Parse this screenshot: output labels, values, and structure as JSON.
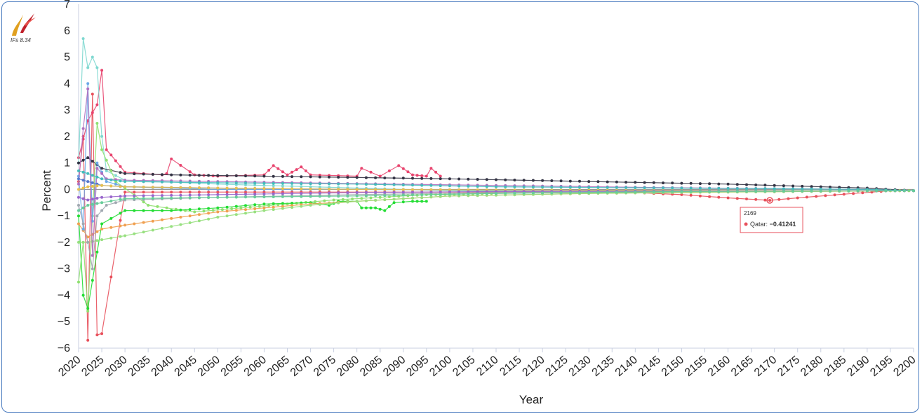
{
  "app": {
    "version_label": "IFs 8.34"
  },
  "chart_data": {
    "type": "line",
    "xlabel": "Year",
    "ylabel": "Percent",
    "xlim": [
      2020,
      2200
    ],
    "ylim": [
      -6,
      7
    ],
    "x_ticks": [
      "2020",
      "2025",
      "2030",
      "2035",
      "2040",
      "2045",
      "2050",
      "2055",
      "2060",
      "2065",
      "2070",
      "2075",
      "2080",
      "2085",
      "2090",
      "2095",
      "2100",
      "2105",
      "2110",
      "2115",
      "2120",
      "2125",
      "2130",
      "2135",
      "2140",
      "2145",
      "2150",
      "2155",
      "2160",
      "2165",
      "2170",
      "2175",
      "2180",
      "2185",
      "2190",
      "2195",
      "2200"
    ],
    "y_ticks": [
      "-6",
      "-5",
      "-4",
      "-3",
      "-2",
      "-1",
      "0",
      "1",
      "2",
      "3",
      "4",
      "5",
      "6",
      "7"
    ],
    "series": [
      {
        "name": "Qatar",
        "color": "#e8505b",
        "x": [
          2020,
          2021,
          2022,
          2023,
          2024,
          2025,
          2030,
          2040,
          2060,
          2080,
          2100,
          2120,
          2140,
          2150,
          2160,
          2169,
          2175,
          2185,
          2195,
          2200
        ],
        "y": [
          0.3,
          2.0,
          -5.7,
          3.6,
          -5.5,
          -5.45,
          -0.1,
          -0.1,
          -0.1,
          -0.1,
          -0.1,
          -0.1,
          -0.12,
          -0.2,
          -0.32,
          -0.41241,
          -0.32,
          -0.18,
          -0.05,
          -0.05
        ]
      },
      {
        "color": "#e8446e",
        "x": [
          2020,
          2022,
          2024,
          2025,
          2026,
          2027,
          2030,
          2038,
          2039,
          2040,
          2045,
          2050,
          2060,
          2062,
          2065,
          2068,
          2070,
          2080,
          2081,
          2085,
          2089,
          2092,
          2095,
          2096,
          2098
        ],
        "y": [
          1.2,
          2.6,
          3.2,
          4.5,
          1.5,
          1.3,
          0.65,
          0.55,
          0.6,
          1.15,
          0.55,
          0.5,
          0.55,
          0.9,
          0.55,
          0.85,
          0.55,
          0.5,
          0.8,
          0.5,
          0.9,
          0.55,
          0.5,
          0.8,
          0.5
        ]
      },
      {
        "color": "#7fd8d0",
        "x": [
          2020,
          2021,
          2022,
          2023,
          2024,
          2025,
          2026,
          2030,
          2050,
          2080,
          2100,
          2130,
          2160,
          2190,
          2200
        ],
        "y": [
          1.0,
          5.7,
          4.6,
          5.0,
          4.6,
          2.0,
          0.7,
          0.35,
          0.2,
          0.05,
          -0.05,
          -0.08,
          -0.08,
          -0.06,
          -0.05
        ]
      },
      {
        "color": "#333344",
        "x": [
          2020,
          2022,
          2025,
          2030,
          2040,
          2060,
          2080,
          2100,
          2130,
          2160,
          2190,
          2200
        ],
        "y": [
          1.0,
          1.2,
          0.8,
          0.6,
          0.55,
          0.5,
          0.45,
          0.4,
          0.3,
          0.2,
          0.05,
          -0.05
        ]
      },
      {
        "color": "#90e070",
        "x": [
          2020,
          2021,
          2022,
          2023,
          2024,
          2025,
          2028,
          2035,
          2045,
          2055,
          2065,
          2075,
          2085,
          2095,
          2110,
          2140,
          2170,
          2195,
          2200
        ],
        "y": [
          -3.5,
          -2.0,
          -4.6,
          -1.0,
          2.5,
          1.5,
          0.3,
          -0.6,
          -0.85,
          -0.7,
          -0.55,
          -0.4,
          -0.3,
          -0.2,
          -0.15,
          -0.1,
          -0.08,
          -0.05,
          -0.05
        ]
      },
      {
        "color": "#22dd33",
        "x": [
          2020,
          2021,
          2022,
          2025,
          2030,
          2040,
          2050,
          2060,
          2070,
          2074,
          2076,
          2080,
          2081,
          2084,
          2086,
          2088,
          2092,
          2095
        ],
        "y": [
          -1.0,
          -4.0,
          -4.5,
          -1.3,
          -0.8,
          -0.8,
          -0.7,
          -0.55,
          -0.5,
          -0.6,
          -0.45,
          -0.45,
          -0.7,
          -0.7,
          -0.8,
          -0.5,
          -0.45,
          -0.45
        ]
      },
      {
        "color": "#f0a050",
        "x": [
          2020,
          2022,
          2025,
          2030,
          2040,
          2050,
          2060,
          2070,
          2080,
          2090,
          2100,
          2130,
          2160,
          2190,
          2200
        ],
        "y": [
          -1.3,
          -1.8,
          -1.5,
          -1.35,
          -1.1,
          -0.85,
          -0.7,
          -0.55,
          -0.45,
          -0.35,
          -0.25,
          -0.15,
          -0.1,
          -0.06,
          -0.05
        ]
      },
      {
        "color": "#98e080",
        "x": [
          2020,
          2022,
          2025,
          2030,
          2040,
          2050,
          2060,
          2070,
          2080,
          2090,
          2100,
          2130,
          2160,
          2190,
          2200
        ],
        "y": [
          -2.0,
          -2.0,
          -1.9,
          -1.75,
          -1.4,
          -1.05,
          -0.8,
          -0.6,
          -0.45,
          -0.35,
          -0.25,
          -0.15,
          -0.1,
          -0.06,
          -0.05
        ]
      },
      {
        "color": "#6aa8e8",
        "x": [
          2020,
          2021,
          2022,
          2023,
          2024,
          2026,
          2030,
          2050,
          2080,
          2100,
          2130,
          2160,
          2190,
          2200
        ],
        "y": [
          0.5,
          -1.5,
          4.0,
          -1.2,
          1.0,
          0.3,
          0.1,
          0.0,
          0.0,
          -0.02,
          -0.04,
          -0.05,
          -0.05,
          -0.05
        ]
      },
      {
        "color": "#b070c0",
        "x": [
          2020,
          2021,
          2022,
          2023,
          2024,
          2026,
          2030,
          2050,
          2080,
          2110,
          2150,
          2190,
          2200
        ],
        "y": [
          0.2,
          2.3,
          3.8,
          -2.5,
          0.8,
          0.4,
          0.35,
          0.3,
          0.22,
          0.15,
          0.06,
          0.0,
          -0.05
        ]
      },
      {
        "color": "#5577cc",
        "x": [
          2020,
          2022,
          2025,
          2030,
          2050,
          2080,
          2110,
          2150,
          2190,
          2200
        ],
        "y": [
          0.4,
          0.3,
          0.15,
          0.1,
          0.05,
          0.0,
          -0.02,
          -0.04,
          -0.05,
          -0.05
        ]
      },
      {
        "color": "#a0a8b0",
        "x": [
          2020,
          2022,
          2023,
          2024,
          2026,
          2030,
          2050,
          2080,
          2110,
          2150,
          2190,
          2200
        ],
        "y": [
          -0.6,
          -2.0,
          -3.0,
          -1.0,
          -0.6,
          -0.4,
          -0.3,
          -0.2,
          -0.12,
          -0.08,
          -0.05,
          -0.05
        ]
      },
      {
        "color": "#e8c050",
        "x": [
          2020,
          2022,
          2025,
          2030,
          2050,
          2080,
          2110,
          2150,
          2190,
          2200
        ],
        "y": [
          0.0,
          0.1,
          0.15,
          0.1,
          0.05,
          0.0,
          -0.02,
          -0.04,
          -0.05,
          -0.05
        ]
      },
      {
        "color": "#9966cc",
        "x": [
          2020,
          2022,
          2025,
          2030,
          2050,
          2080,
          2110,
          2150,
          2190,
          2200
        ],
        "y": [
          -0.3,
          -0.4,
          -0.3,
          -0.25,
          -0.2,
          -0.12,
          -0.08,
          -0.06,
          -0.05,
          -0.05
        ]
      },
      {
        "color": "#44bbbb",
        "x": [
          2020,
          2022,
          2025,
          2030,
          2050,
          2080,
          2110,
          2150,
          2190,
          2200
        ],
        "y": [
          0.7,
          0.6,
          0.4,
          0.3,
          0.25,
          0.2,
          0.1,
          0.05,
          0.0,
          -0.05
        ]
      },
      {
        "color": "#66cc99",
        "x": [
          2020,
          2022,
          2025,
          2030,
          2050,
          2080,
          2110,
          2150,
          2190,
          2200
        ],
        "y": [
          -0.8,
          -0.6,
          -0.5,
          -0.35,
          -0.3,
          -0.25,
          -0.15,
          -0.08,
          -0.05,
          -0.05
        ]
      }
    ]
  },
  "tooltip": {
    "year": "2169",
    "label": "Qatar: ",
    "value": "-0.41241",
    "color": "#e8505b",
    "x": 2169,
    "y": -0.41241
  }
}
